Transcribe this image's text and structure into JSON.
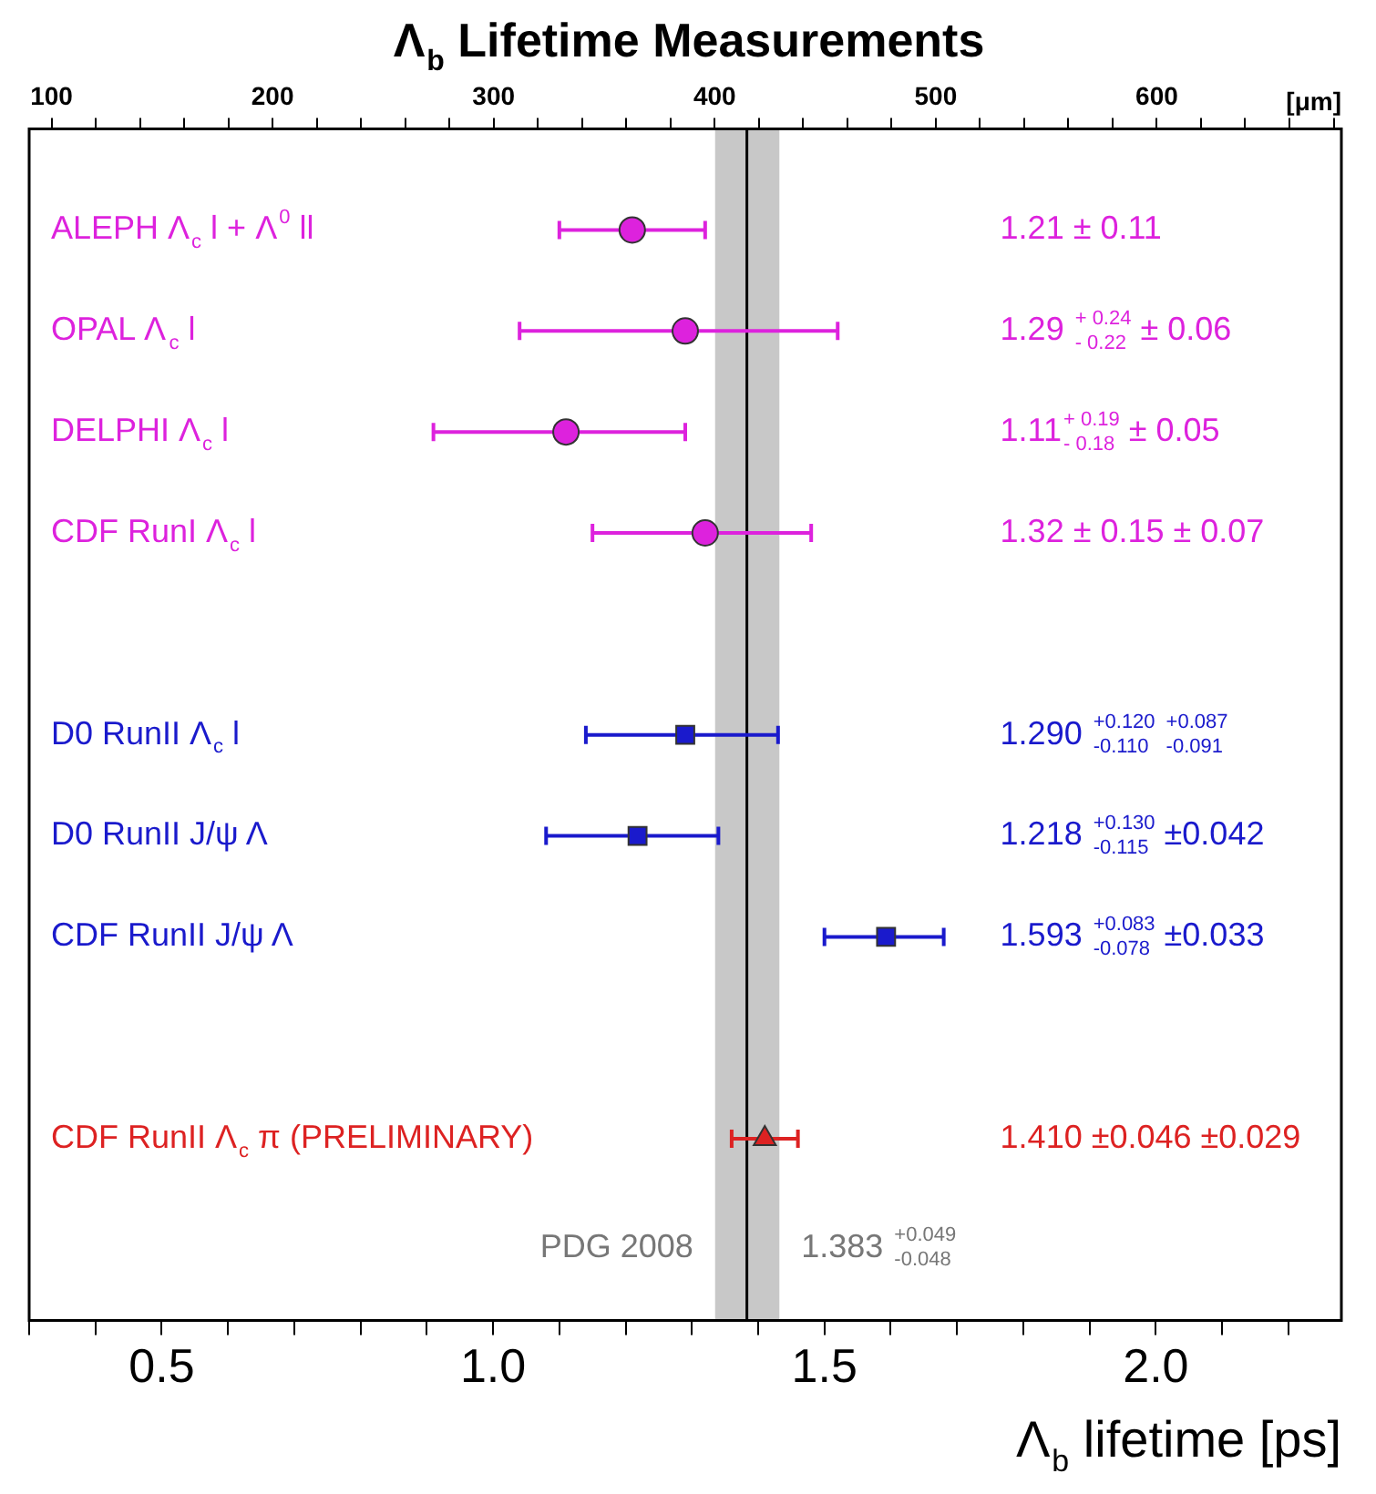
{
  "chart_data": {
    "type": "scatter",
    "orientation": "horizontal",
    "title": "Λ$_{b}$ Lifetime Measurements",
    "xlabel": "Λ$_{b}$ lifetime [ps]",
    "x2label": "[μm]",
    "categories": [
      "ALEPH Λ$_{c}$ l + Λ$^{0}$ ll",
      "OPAL Λ$_{c}$ l",
      "DELPHI Λ$_{c}$ l",
      "CDF RunI Λ$_{c}$ l",
      null,
      "D0 RunII Λ$_{c}$ l",
      "D0 RunII J/ψ Λ",
      "CDF RunII J/ψ Λ",
      null,
      "CDF RunII Λ$_{c}$ π (PRELIMINARY)"
    ],
    "series": [
      {
        "color": "#dd22dd",
        "marker": "circle",
        "values": [
          1.21,
          1.29,
          1.11,
          1.32,
          null,
          null,
          null,
          null,
          null,
          null
        ],
        "errors": [
          [
            1.1,
            1.32
          ],
          [
            1.04,
            1.52
          ],
          [
            0.91,
            1.29
          ],
          [
            1.15,
            1.48
          ],
          null,
          null,
          null,
          null,
          null,
          null
        ]
      },
      {
        "color": "#1a1acc",
        "marker": "square",
        "values": [
          null,
          null,
          null,
          null,
          null,
          1.29,
          1.218,
          1.593,
          null,
          null
        ],
        "errors": [
          null,
          null,
          null,
          null,
          null,
          [
            1.14,
            1.43
          ],
          [
            1.08,
            1.34
          ],
          [
            1.5,
            1.68
          ],
          null,
          null
        ]
      },
      {
        "color": "#dd2222",
        "marker": "triangle",
        "values": [
          null,
          null,
          null,
          null,
          null,
          null,
          null,
          null,
          null,
          1.41
        ],
        "errors": [
          null,
          null,
          null,
          null,
          null,
          null,
          null,
          null,
          null,
          [
            1.36,
            1.46
          ]
        ]
      }
    ],
    "xlim": [
      0.3,
      2.28
    ],
    "xticks": [
      {
        "value": 0.3,
        "label": null
      },
      {
        "value": 0.4,
        "label": null
      },
      0.5,
      {
        "value": 0.6,
        "label": null
      },
      {
        "value": 0.7,
        "label": null
      },
      {
        "value": 0.8,
        "label": null
      },
      {
        "value": 0.9,
        "label": null
      },
      {
        "value": 1.0,
        "label": "1.0"
      },
      {
        "value": 1.1,
        "label": null
      },
      {
        "value": 1.2,
        "label": null
      },
      {
        "value": 1.3,
        "label": null
      },
      {
        "value": 1.4,
        "label": null
      },
      1.5,
      {
        "value": 1.6,
        "label": null
      },
      {
        "value": 1.7,
        "label": null
      },
      {
        "value": 1.8,
        "label": null
      },
      {
        "value": 1.9,
        "label": null
      },
      {
        "value": 2.0,
        "label": "2.0"
      },
      {
        "value": 2.1,
        "label": null
      },
      {
        "value": 2.2,
        "label": null
      }
    ],
    "x2lim": [
      89.9,
      683.5
    ],
    "x2ticks": [
      100,
      {
        "value": 120,
        "label": null
      },
      {
        "value": 140,
        "label": null
      },
      {
        "value": 160,
        "label": null
      },
      {
        "value": 180,
        "label": null
      },
      200,
      {
        "value": 220,
        "label": null
      },
      {
        "value": 240,
        "label": null
      },
      {
        "value": 260,
        "label": null
      },
      {
        "value": 280,
        "label": null
      },
      300,
      {
        "value": 320,
        "label": null
      },
      {
        "value": 340,
        "label": null
      },
      {
        "value": 360,
        "label": null
      },
      {
        "value": 380,
        "label": null
      },
      400,
      {
        "value": 420,
        "label": null
      },
      {
        "value": 440,
        "label": null
      },
      {
        "value": 460,
        "label": null
      },
      {
        "value": 480,
        "label": null
      },
      500,
      {
        "value": 520,
        "label": null
      },
      {
        "value": 540,
        "label": null
      },
      {
        "value": 560,
        "label": null
      },
      {
        "value": 580,
        "label": null
      },
      600,
      {
        "value": 620,
        "label": null
      },
      {
        "value": 640,
        "label": null
      },
      {
        "value": 660,
        "label": null
      },
      {
        "value": 680,
        "label": null
      }
    ],
    "bands": [
      {
        "axis": "x",
        "from": 1.335,
        "to": 1.432,
        "color": "#c8c8c8"
      }
    ],
    "ref_lines": [
      {
        "axis": "x",
        "value": 1.383,
        "label": "PDG 2008",
        "color": "#000000"
      }
    ],
    "annotations": [
      "1.21 ± 0.11",
      "1.29 $^{+ 0.24}$$_{- 0.22}$ ± 0.06",
      "1.11$^{+ 0.19}$$_{- 0.18}$ ± 0.05",
      "1.32 ± 0.15 ± 0.07",
      "1.290 $^{+0.120}$$_{-0.110}$ $^{+0.087}$$_{-0.091}$",
      "1.218 $^{+0.130}$$_{-0.115}$ ±0.042",
      "1.593 $^{+0.083}$$_{-0.078}$ ±0.033",
      "1.410 ±0.046 ±0.029",
      "1.383 $^{+0.049}$$_{-0.048}$"
    ]
  }
}
